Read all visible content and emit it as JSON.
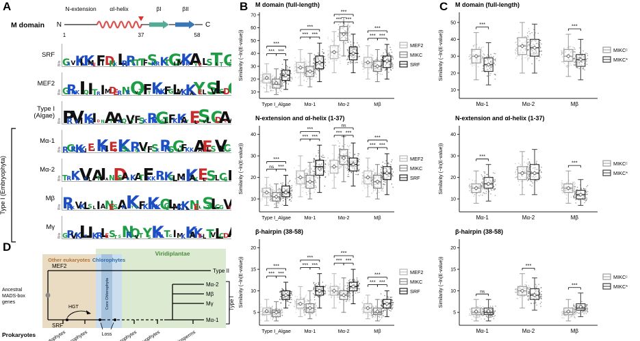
{
  "figure": {
    "labels": {
      "A": "A",
      "B": "B",
      "C": "C",
      "D": "D"
    }
  },
  "panelA": {
    "schematic": {
      "title": "M domain",
      "n_label": "N",
      "c_label": "C",
      "regions": [
        "N-extension",
        "αI-helix",
        "βI",
        "βII"
      ],
      "positions": [
        "1",
        "37",
        "58"
      ]
    },
    "logo_axis_label": "Bits",
    "group_label": "Type I (Embryophyta)",
    "logo_rows": [
      {
        "label": "SRF",
        "seq": "GRVKIKMEFIDNKLRRYTTFSKRKTGIMKKAYELSTLTGT"
      },
      {
        "label": "MEF2",
        "seq": "GRKKIQITRIMDERNRQVTFTKRKFGLMKKAYELSVLCDC"
      },
      {
        "label": "Type I (Algae)",
        "seq": "PRVKIKRIDNATARQVTFSKRRGGLFKKAYELSVLCDAEV"
      },
      {
        "label": "Mα-1",
        "seq": "RGRKKIEIKRIEDKSSRQVTFSKRRSGLFKKAAELSVLCG"
      },
      {
        "label": "Mα-2",
        "seq": "TRKKVKLAYIANDSARKATFKKRKKGLMKKAYELSTLCGI"
      },
      {
        "label": "Mβ",
        "seq": "RRKVKLSLIANESARKTTFKKRKQGLMKKLNELSTLCGVE"
      },
      {
        "label": "Mγ",
        "seq": "GRVKLKIKRLESTSNRQVTYSKRRTGIMKKAKELTVLCDA"
      }
    ]
  },
  "panelD": {
    "regions": {
      "other_eukaryotes": {
        "label": "Other eukaryotes",
        "color": "#b5702f",
        "bg": "#eadcc3"
      },
      "chlorophytes": {
        "label": "Chlorophytes",
        "color": "#2e6da8",
        "bg": "#cadeef"
      },
      "core_chlorophyta": {
        "label": "Core Chlorophyta",
        "color": "#1f3f66",
        "bg": "#a6c2dc"
      },
      "viridiplantae": {
        "label": "Viridiplantae",
        "color": "#4a8a3c",
        "bg": "#dcead2"
      }
    },
    "labels": {
      "ancestral_line1": "Ancestral",
      "ancestral_line2": "MADS-box",
      "ancestral_line3": "genes",
      "prokaryotes": "Prokaryotes",
      "mef2": "MEF2",
      "srf": "SRF",
      "hgt": "HGT",
      "loss": "Loss",
      "type2": "Type II",
      "type1": "Type I",
      "ma2": "Mα-2",
      "mb": "Mβ",
      "mg": "Mγ",
      "ma1": "Mα-1"
    },
    "leaves": [
      "Rhodophytes",
      "Glaucophytes",
      "Charophytes",
      "Bryophytes",
      "Angiosperms"
    ]
  },
  "chart_data": [
    {
      "type": "boxplot",
      "panel": "B",
      "title": "M domain (full-length)",
      "ylabel": "Similarity (−ln(E-value))",
      "ylim": [
        5,
        72
      ],
      "yticks": [
        10,
        20,
        30,
        40,
        50,
        60,
        70
      ],
      "categories": [
        "Type I_Algae",
        "Mα-1",
        "Mα-2",
        "Mβ"
      ],
      "series": [
        {
          "name": "MEF2",
          "color": "#b5b5b5",
          "stats": [
            [
              10,
              17,
              20,
              24,
              32,
              21
            ],
            [
              15,
              25,
              29,
              33,
              43,
              29
            ],
            [
              25,
              36,
              41,
              46,
              57,
              41
            ],
            [
              20,
              29,
              33,
              37,
              46,
              33
            ]
          ]
        },
        {
          "name": "MIKC",
          "color": "#7d7d7d",
          "stats": [
            [
              8,
              13,
              16,
              20,
              28,
              17
            ],
            [
              14,
              22,
              26,
              30,
              40,
              26
            ],
            [
              38,
              50,
              56,
              61,
              68,
              55
            ],
            [
              18,
              26,
              30,
              34,
              43,
              30
            ]
          ]
        },
        {
          "name": "SRF",
          "color": "#1b1b1b",
          "stats": [
            [
              12,
              19,
              23,
              27,
              35,
              23
            ],
            [
              18,
              28,
              33,
              38,
              48,
              33
            ],
            [
              25,
              35,
              40,
              45,
              55,
              40
            ],
            [
              20,
              29,
              34,
              38,
              47,
              34
            ]
          ]
        }
      ],
      "sig": [
        [
          "***",
          "***",
          "***"
        ],
        [
          "***",
          "***",
          "***"
        ],
        [
          "***",
          "***",
          "***"
        ],
        [
          "***",
          "***",
          "***"
        ]
      ]
    },
    {
      "type": "boxplot",
      "panel": "B",
      "title": "N-extension and αI-helix (1-37)",
      "ylabel": "Similarity (−ln(E-value))",
      "ylim": [
        4,
        44
      ],
      "yticks": [
        10,
        20,
        30,
        40
      ],
      "categories": [
        "Type I_Algae",
        "Mα-1",
        "Mα-2",
        "Mβ"
      ],
      "series": [
        {
          "name": "MEF2",
          "color": "#b5b5b5",
          "stats": [
            [
              7,
              11,
              13,
              15,
              20,
              13
            ],
            [
              11,
              17,
              20,
              23,
              30,
              20
            ],
            [
              15,
              22,
              25,
              28,
              35,
              25
            ],
            [
              11,
              17,
              20,
              23,
              29,
              20
            ]
          ]
        },
        {
          "name": "MIKC",
          "color": "#7d7d7d",
          "stats": [
            [
              6,
              9,
              11,
              13,
              17,
              11
            ],
            [
              10,
              15,
              18,
              21,
              27,
              18
            ],
            [
              18,
              26,
              30,
              33,
              39,
              29
            ],
            [
              10,
              15,
              18,
              21,
              26,
              18
            ]
          ]
        },
        {
          "name": "SRF",
          "color": "#1b1b1b",
          "stats": [
            [
              7,
              11,
              13,
              16,
              21,
              13
            ],
            [
              13,
              21,
              25,
              28,
              35,
              24
            ],
            [
              16,
              23,
              26,
              29,
              36,
              26
            ],
            [
              12,
              19,
              22,
              25,
              31,
              22
            ]
          ]
        }
      ],
      "sig": [
        [
          "ns",
          "***",
          "***"
        ],
        [
          "***",
          "***",
          "***"
        ],
        [
          "***",
          "***",
          "ns"
        ],
        [
          "***",
          "***",
          "***"
        ]
      ]
    },
    {
      "type": "boxplot",
      "panel": "B",
      "title": "β-hairpin (38-58)",
      "ylabel": "Similarity (−ln(E-value))",
      "ylim": [
        2,
        22
      ],
      "yticks": [
        5,
        10,
        15,
        20
      ],
      "categories": [
        "Type I_Algae",
        "Mα-1",
        "Mα-2",
        "Mβ"
      ],
      "series": [
        {
          "name": "MEF2",
          "color": "#b5b5b5",
          "stats": [
            [
              3,
              4.5,
              5,
              6,
              8,
              5.3
            ],
            [
              4,
              6,
              7,
              8,
              11,
              7
            ],
            [
              6,
              9,
              10,
              11,
              14,
              10
            ],
            [
              3.5,
              5,
              6,
              7,
              9,
              6
            ]
          ]
        },
        {
          "name": "MIKC",
          "color": "#7d7d7d",
          "stats": [
            [
              3,
              4,
              5,
              5.5,
              7.5,
              5
            ],
            [
              3.5,
              5,
              6,
              7,
              10,
              6
            ],
            [
              5,
              8,
              9,
              10,
              13,
              9
            ],
            [
              3,
              4.5,
              5,
              6,
              8,
              5.2
            ]
          ]
        },
        {
          "name": "SRF",
          "color": "#1b1b1b",
          "stats": [
            [
              6,
              8,
              9,
              10,
              12,
              9
            ],
            [
              6,
              9,
              10,
              11,
              14,
              10
            ],
            [
              7,
              10,
              11,
              12,
              15,
              11
            ],
            [
              4,
              6,
              7,
              8,
              10,
              7
            ]
          ]
        }
      ],
      "sig": [
        [
          "***",
          "***",
          "***"
        ],
        [
          "***",
          "***",
          "***"
        ],
        [
          "***",
          "***",
          "***"
        ],
        [
          "***",
          "***",
          "***"
        ]
      ]
    },
    {
      "type": "boxplot",
      "panel": "C",
      "title": "M domain (full-length)",
      "ylabel": "Similarity (−ln(E-value))",
      "ylim": [
        5,
        56
      ],
      "yticks": [
        10,
        20,
        30,
        40,
        50
      ],
      "categories": [
        "Mα-1",
        "Mα-2",
        "Mβ"
      ],
      "series": [
        {
          "name": "MIKCᶜ",
          "color": "#9b9b9b",
          "stats": [
            [
              16,
              26,
              30,
              34,
              44,
              30
            ],
            [
              20,
              31,
              36,
              41,
              50,
              36
            ],
            [
              18,
              27,
              30,
              34,
              43,
              30
            ]
          ]
        },
        {
          "name": "MIKC*",
          "color": "#3d3d3d",
          "stats": [
            [
              13,
              21,
              25,
              29,
              38,
              25
            ],
            [
              20,
              30,
              35,
              40,
              49,
              35
            ],
            [
              16,
              24,
              28,
              31,
              40,
              28
            ]
          ]
        }
      ],
      "sig": [
        [
          "***"
        ],
        [
          null
        ],
        [
          "***"
        ]
      ]
    },
    {
      "type": "boxplot",
      "panel": "C",
      "title": "N-extension and αI-helix (1-37)",
      "ylabel": "Similarity (−ln(E-value))",
      "ylim": [
        4,
        44
      ],
      "yticks": [
        10,
        20,
        30,
        40
      ],
      "categories": [
        "Mα-1",
        "Mα-2",
        "Mβ"
      ],
      "series": [
        {
          "name": "MIKCᶜ",
          "color": "#9b9b9b",
          "stats": [
            [
              8,
              13,
              15,
              17,
              23,
              15
            ],
            [
              12,
              19,
              22,
              25,
              32,
              22
            ],
            [
              8,
              13,
              15,
              17,
              23,
              15
            ]
          ]
        },
        {
          "name": "MIKC*",
          "color": "#3d3d3d",
          "stats": [
            [
              9,
              15,
              17,
              20,
              26,
              17
            ],
            [
              12,
              19,
              22,
              26,
              33,
              22
            ],
            [
              7,
              10,
              12,
              14,
              19,
              12
            ]
          ]
        }
      ],
      "sig": [
        [
          "***"
        ],
        [
          null
        ],
        [
          "***"
        ]
      ]
    },
    {
      "type": "boxplot",
      "panel": "C",
      "title": "β-hairpin (38-58)",
      "ylabel": "Similarity (−ln(E-value))",
      "ylim": [
        2,
        22
      ],
      "yticks": [
        5,
        10,
        15,
        20
      ],
      "categories": [
        "Mα-1",
        "Mα-2",
        "Mβ"
      ],
      "series": [
        {
          "name": "MIKCᶜ",
          "color": "#9b9b9b",
          "stats": [
            [
              3,
              4.5,
              5,
              6,
              8,
              5.2
            ],
            [
              6,
              9,
              10,
              11,
              14,
              10
            ],
            [
              3,
              4.5,
              5,
              6,
              8,
              5.2
            ]
          ]
        },
        {
          "name": "MIKC*",
          "color": "#3d3d3d",
          "stats": [
            [
              3,
              4.5,
              5,
              6,
              8,
              5.3
            ],
            [
              5.5,
              8,
              9,
              10.5,
              13,
              9
            ],
            [
              4,
              5.5,
              6,
              7,
              9.5,
              6.3
            ]
          ]
        }
      ],
      "sig": [
        [
          "ns"
        ],
        [
          "***"
        ],
        [
          "***"
        ]
      ]
    }
  ]
}
